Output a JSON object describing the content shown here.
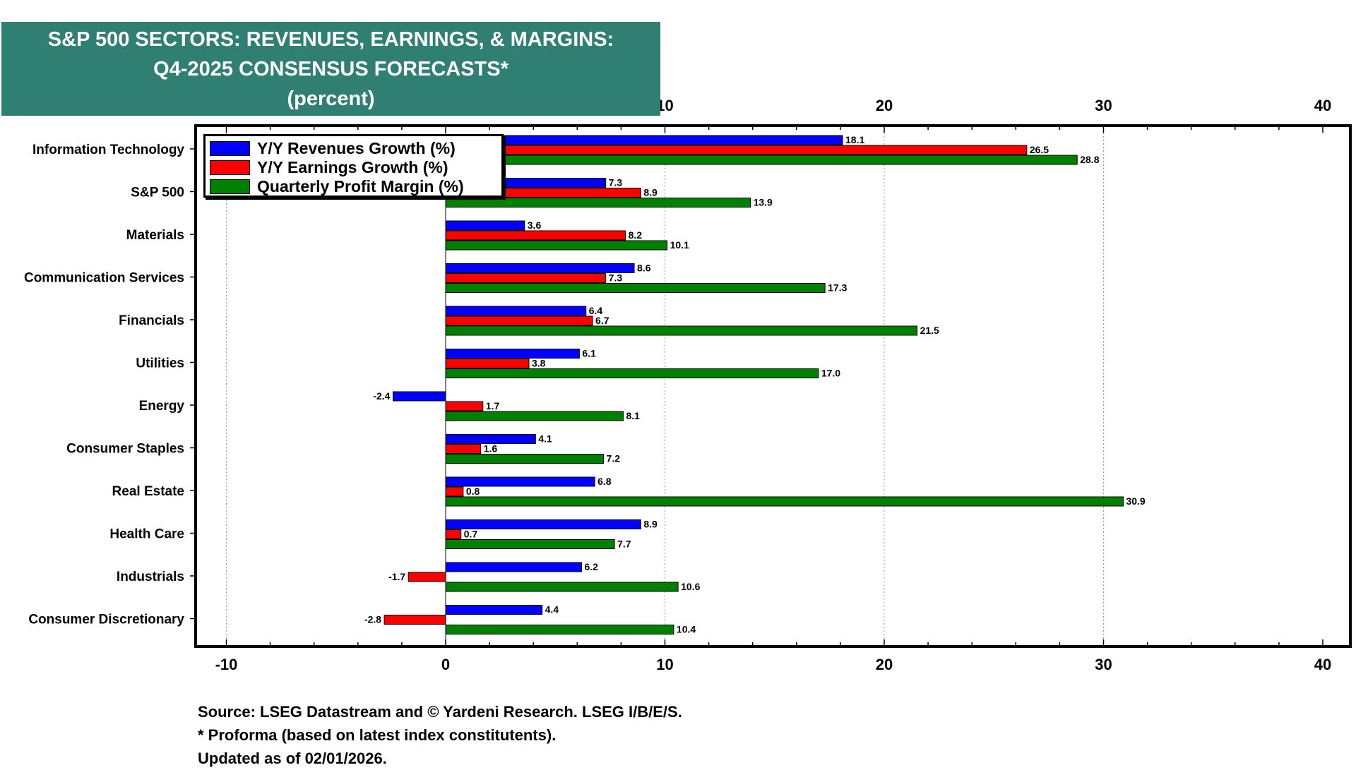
{
  "title": {
    "line1": "S&P 500 SECTORS: REVENUES, EARNINGS, & MARGINS:",
    "line2": "Q4-2025 CONSENSUS FORECASTS*",
    "line3": "(percent)"
  },
  "footer": {
    "source": "Source: LSEG Datastream and © Yardeni Research. LSEG I/B/E/S.",
    "note": "* Proforma (based on latest index constitutents).",
    "updated": "Updated as of 02/01/2026."
  },
  "chart_data": {
    "type": "bar",
    "orientation": "horizontal",
    "title": "S&P 500 SECTORS: REVENUES, EARNINGS, & MARGINS: Q4-2025 CONSENSUS FORECASTS* (percent)",
    "xlim": [
      -11,
      41
    ],
    "xticks": [
      -10,
      0,
      10,
      20,
      30,
      40
    ],
    "grid": "vertical dotted",
    "legend_position": "top-left",
    "categories": [
      "Information Technology",
      "S&P 500",
      "Materials",
      "Communication Services",
      "Financials",
      "Utilities",
      "Energy",
      "Consumer Staples",
      "Real Estate",
      "Health Care",
      "Industrials",
      "Consumer Discretionary"
    ],
    "series": [
      {
        "name": "Y/Y Revenues Growth (%)",
        "color": "#0000ff",
        "values": [
          18.1,
          7.3,
          3.6,
          8.6,
          6.4,
          6.1,
          -2.4,
          4.1,
          6.8,
          8.9,
          6.2,
          4.4
        ]
      },
      {
        "name": "Y/Y Earnings Growth (%)",
        "color": "#ff0000",
        "values": [
          26.5,
          8.9,
          8.2,
          7.3,
          6.7,
          3.8,
          1.7,
          1.6,
          0.8,
          0.7,
          -1.7,
          -2.8
        ]
      },
      {
        "name": "Quarterly Profit Margin (%)",
        "color": "#008000",
        "values": [
          28.8,
          13.9,
          10.1,
          17.3,
          21.5,
          17.0,
          8.1,
          7.2,
          30.9,
          7.7,
          10.6,
          10.4
        ]
      }
    ]
  }
}
